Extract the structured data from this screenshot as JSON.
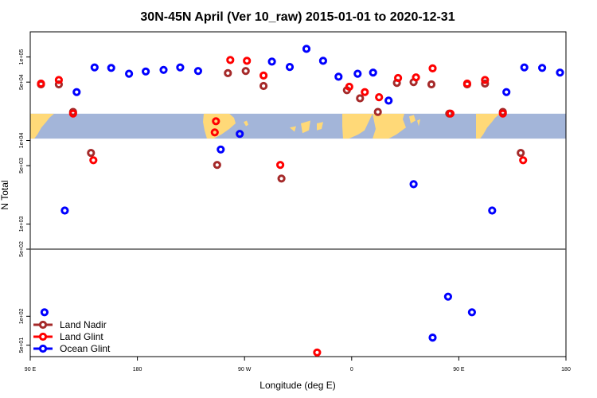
{
  "chart_data": {
    "type": "scatter",
    "title": "30N-45N April (Ver 10_raw)   2015-01-01 to 2020-12-31",
    "xlabel": "Longitude (deg E)",
    "ylabel": "N Total",
    "x_ticks": [
      {
        "value": 90,
        "label": "90 E"
      },
      {
        "value": 180,
        "label": "180"
      },
      {
        "value": 270,
        "label": "90 W"
      },
      {
        "value": 360,
        "label": "0"
      },
      {
        "value": 450,
        "label": "90 E"
      },
      {
        "value": 540,
        "label": "180"
      }
    ],
    "x_range": [
      90,
      540
    ],
    "upper_panel": {
      "scale": "log",
      "ylim": [
        500,
        200000
      ],
      "y_ticks": [
        {
          "value": 500,
          "label": "5e+02"
        },
        {
          "value": 1000,
          "label": "1e+03"
        },
        {
          "value": 5000,
          "label": "5e+03"
        },
        {
          "value": 10000,
          "label": "1e+04"
        },
        {
          "value": 50000,
          "label": "5e+04"
        },
        {
          "value": 100000,
          "label": "1e+05"
        }
      ],
      "map_strip": {
        "lat_range": "30N-45N",
        "value_range": [
          10500,
          21000
        ]
      }
    },
    "lower_panel": {
      "scale": "log",
      "ylim": [
        38,
        500
      ],
      "y_ticks": [
        {
          "value": 50,
          "label": "5e+01"
        },
        {
          "value": 100,
          "label": "1e+02"
        }
      ]
    },
    "legend": {
      "position": "bottom-left",
      "entries": [
        {
          "name": "Land Nadir",
          "color": "#a52a2a"
        },
        {
          "name": "Land Glint",
          "color": "#ff0000"
        },
        {
          "name": "Ocean Glint",
          "color": "#0000ff"
        }
      ]
    },
    "series": [
      {
        "name": "Land Nadir",
        "color": "#a52a2a",
        "points": [
          [
            99,
            47000
          ],
          [
            114,
            47000
          ],
          [
            126,
            22000
          ],
          [
            141,
            7100
          ],
          [
            247,
            5100
          ],
          [
            256,
            64000
          ],
          [
            271,
            68000
          ],
          [
            286,
            45000
          ],
          [
            301,
            3500
          ],
          [
            356,
            40000
          ],
          [
            367,
            32000
          ],
          [
            382,
            22000
          ],
          [
            398,
            49000
          ],
          [
            412,
            50000
          ],
          [
            427,
            47000
          ],
          [
            442,
            21000
          ],
          [
            457,
            47000
          ],
          [
            472,
            48000
          ],
          [
            487,
            22000
          ],
          [
            502,
            7100
          ]
        ]
      },
      {
        "name": "Land Glint",
        "color": "#ff0000",
        "points": [
          [
            99,
            48000
          ],
          [
            114,
            53000
          ],
          [
            126,
            21000
          ],
          [
            143,
            5800
          ],
          [
            245,
            12500
          ],
          [
            246,
            17000
          ],
          [
            258,
            92000
          ],
          [
            272,
            90000
          ],
          [
            286,
            60000
          ],
          [
            300,
            5100
          ],
          [
            331,
            42
          ],
          [
            358,
            44000
          ],
          [
            371,
            38000
          ],
          [
            383,
            33000
          ],
          [
            399,
            56000
          ],
          [
            414,
            57000
          ],
          [
            428,
            73000
          ],
          [
            443,
            21000
          ],
          [
            457,
            48000
          ],
          [
            472,
            53000
          ],
          [
            487,
            21000
          ],
          [
            504,
            5800
          ]
        ]
      },
      {
        "name": "Ocean Glint",
        "color": "#0000ff",
        "points": [
          [
            102,
            110
          ],
          [
            119,
            1450
          ],
          [
            129,
            38000
          ],
          [
            144,
            75000
          ],
          [
            158,
            74000
          ],
          [
            173,
            63000
          ],
          [
            187,
            67000
          ],
          [
            202,
            70000
          ],
          [
            216,
            75000
          ],
          [
            231,
            68000
          ],
          [
            250,
            7800
          ],
          [
            266,
            12000
          ],
          [
            293,
            88000
          ],
          [
            308,
            76000
          ],
          [
            322,
            125000
          ],
          [
            336,
            90000
          ],
          [
            349,
            58000
          ],
          [
            365,
            63000
          ],
          [
            378,
            65000
          ],
          [
            391,
            30000
          ],
          [
            412,
            3000
          ],
          [
            428,
            60
          ],
          [
            441,
            160
          ],
          [
            461,
            110
          ],
          [
            478,
            1450
          ],
          [
            490,
            38000
          ],
          [
            505,
            75000
          ],
          [
            520,
            74000
          ],
          [
            535,
            65000
          ]
        ]
      }
    ]
  }
}
